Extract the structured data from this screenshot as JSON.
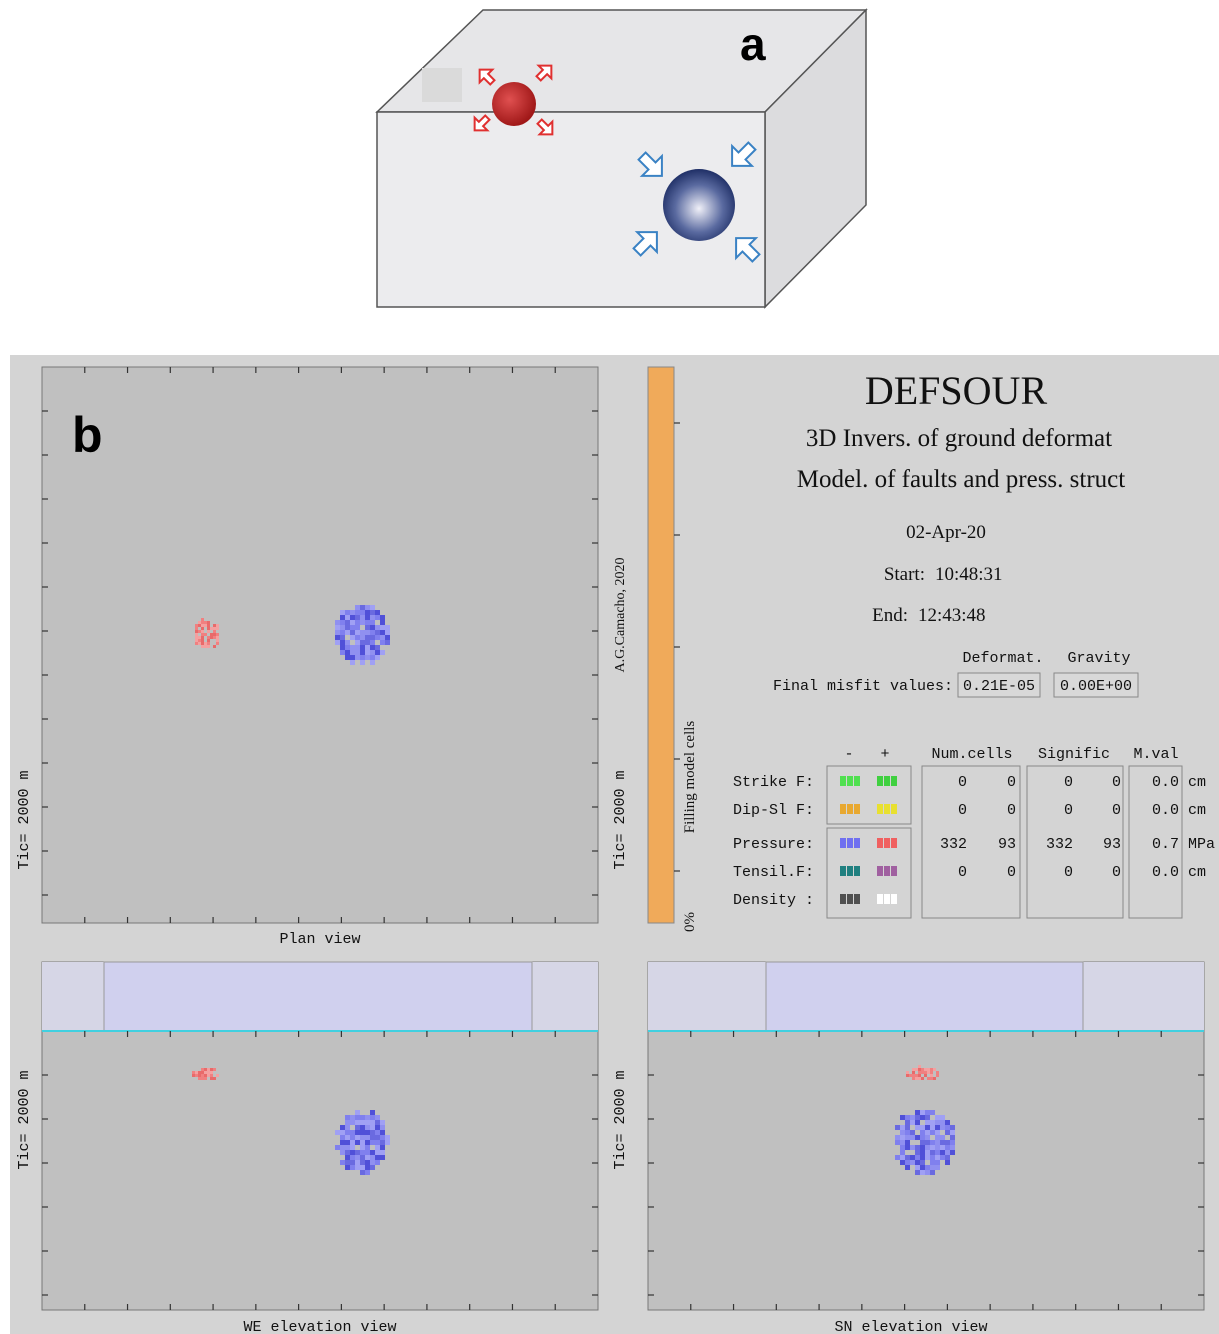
{
  "panel_a": {
    "label": "a"
  },
  "panel_b": {
    "label": "b",
    "title": "DEFSOUR",
    "subtitle_1": "3D Invers. of ground deformat",
    "subtitle_2": "Model. of faults and press. struct",
    "date": "02-Apr-20",
    "start_label": "Start:",
    "start": "10:48:31",
    "end_label": "End:",
    "end": "12:43:48",
    "misfit": {
      "label": "Final misfit values:",
      "headers": [
        "Deformat.",
        "Gravity"
      ],
      "values": [
        "0.21E-05",
        "0.00E+00"
      ]
    },
    "table": {
      "headers": [
        "-",
        "+",
        "Num.cells",
        "Signific",
        "M.val"
      ],
      "rows": [
        {
          "name": "Strike F:",
          "num": [
            "0",
            "0"
          ],
          "sig": [
            "0",
            "0"
          ],
          "mval": "0.0",
          "unit": "cm"
        },
        {
          "name": "Dip-Sl F:",
          "num": [
            "0",
            "0"
          ],
          "sig": [
            "0",
            "0"
          ],
          "mval": "0.0",
          "unit": "cm"
        },
        {
          "name": "Pressure:",
          "num": [
            "332",
            "93"
          ],
          "sig": [
            "332",
            "93"
          ],
          "mval": "0.7",
          "unit": "MPa"
        },
        {
          "name": "Tensil.F:",
          "num": [
            "0",
            "0"
          ],
          "sig": [
            "0",
            "0"
          ],
          "mval": "0.0",
          "unit": "cm"
        },
        {
          "name": "Density :"
        }
      ]
    },
    "plan_view": {
      "label": "Plan view",
      "tic_left": "Tic= 2000 m",
      "tic_right": "Tic= 2000 m",
      "credit": "A.G.Camacho, 2020"
    },
    "filling": {
      "label": "Filling model cells",
      "percent": "0%"
    },
    "we_view": {
      "label": "WE elevation view",
      "tic": "Tic= 2000 m"
    },
    "sn_view": {
      "label": "SN elevation view",
      "tic": "Tic= 2000 m"
    }
  }
}
